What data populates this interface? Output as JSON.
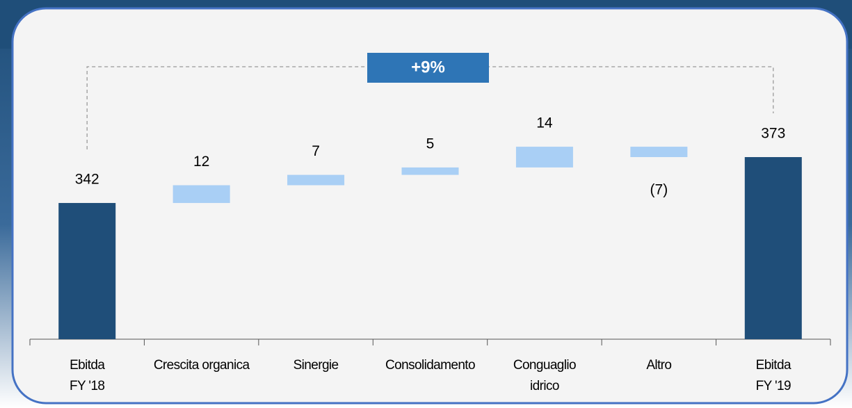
{
  "chart_data": {
    "type": "waterfall",
    "categories": [
      [
        "Ebitda",
        "FY '18"
      ],
      [
        "Crescita organica"
      ],
      [
        "Sinergie"
      ],
      [
        "Consolidamento"
      ],
      [
        "Conguaglio",
        "idrico"
      ],
      [
        "Altro"
      ],
      [
        "Ebitda",
        "FY '19"
      ]
    ],
    "values": [
      342,
      12,
      7,
      5,
      14,
      -7,
      373
    ],
    "value_labels": [
      "342",
      "12",
      "7",
      "5",
      "14",
      "(7)",
      "373"
    ],
    "total_color": "#1f4e79",
    "color": "#a9cff5",
    "ylim": [
      250,
      450
    ],
    "annotation": "+9%",
    "annotation_color": "#2e75b6"
  }
}
